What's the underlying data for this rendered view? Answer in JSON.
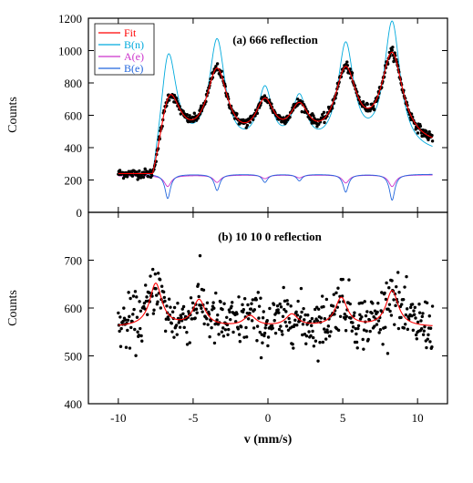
{
  "chart_data": [
    {
      "type": "scatter",
      "panel": "a",
      "title": "(a) 666 reflection",
      "xlabel": "",
      "ylabel": "Counts",
      "xlim": [
        -12,
        12
      ],
      "ylim": [
        0,
        1200
      ],
      "xticks": [
        -10,
        -5,
        0,
        5,
        10
      ],
      "yticks": [
        0,
        200,
        400,
        600,
        800,
        1000,
        1200
      ],
      "grid": false,
      "legend_position": "top-left",
      "data_range": [
        -10,
        11
      ],
      "background": 240,
      "edge": -7.7,
      "lines": [
        {
          "x": -6.7,
          "amp": 520,
          "width": 0.55
        },
        {
          "x": -3.4,
          "amp": 500,
          "width": 0.55
        },
        {
          "x": -0.2,
          "amp": 270,
          "width": 0.5
        },
        {
          "x": 2.1,
          "amp": 230,
          "width": 0.5
        },
        {
          "x": 5.2,
          "amp": 480,
          "width": 0.55
        },
        {
          "x": 8.3,
          "amp": 590,
          "width": 0.55
        }
      ],
      "dips_e": [
        -6.7,
        -3.4,
        -0.2,
        2.1,
        5.2,
        8.3
      ],
      "dip_depths_e": [
        150,
        100,
        50,
        40,
        110,
        160
      ],
      "series": [
        {
          "name": "Fit",
          "color": "#ff0000",
          "kind": "line"
        },
        {
          "name": "B(n)",
          "color": "#00aadd",
          "kind": "line"
        },
        {
          "name": "A(e)",
          "color": "#cc33cc",
          "kind": "line"
        },
        {
          "name": "B(e)",
          "color": "#2266dd",
          "kind": "line"
        },
        {
          "name": "",
          "color": "#000000",
          "kind": "points"
        }
      ]
    },
    {
      "type": "scatter",
      "panel": "b",
      "title": "(b) 10 10 0 reflection",
      "xlabel": "v (mm/s)",
      "ylabel": "Counts",
      "xlim": [
        -12,
        12
      ],
      "ylim": [
        400,
        800
      ],
      "xticks": [
        -10,
        -5,
        0,
        5,
        10
      ],
      "yticks": [
        400,
        500,
        600,
        700
      ],
      "grid": false,
      "data_range": [
        -10,
        11
      ],
      "background": 560,
      "lines": [
        {
          "x": -7.5,
          "amp": 90,
          "width": 0.5
        },
        {
          "x": -4.6,
          "amp": 55,
          "width": 0.5
        },
        {
          "x": -1.2,
          "amp": 22,
          "width": 0.5
        },
        {
          "x": 1.6,
          "amp": 25,
          "width": 0.5
        },
        {
          "x": 4.9,
          "amp": 60,
          "width": 0.5
        },
        {
          "x": 8.3,
          "amp": 75,
          "width": 0.5
        }
      ],
      "series": [
        {
          "name": "",
          "color": "#ff0000",
          "kind": "line"
        },
        {
          "name": "",
          "color": "#000000",
          "kind": "points"
        }
      ]
    }
  ],
  "colors": {
    "frame": "#000000",
    "points": "#000000"
  }
}
